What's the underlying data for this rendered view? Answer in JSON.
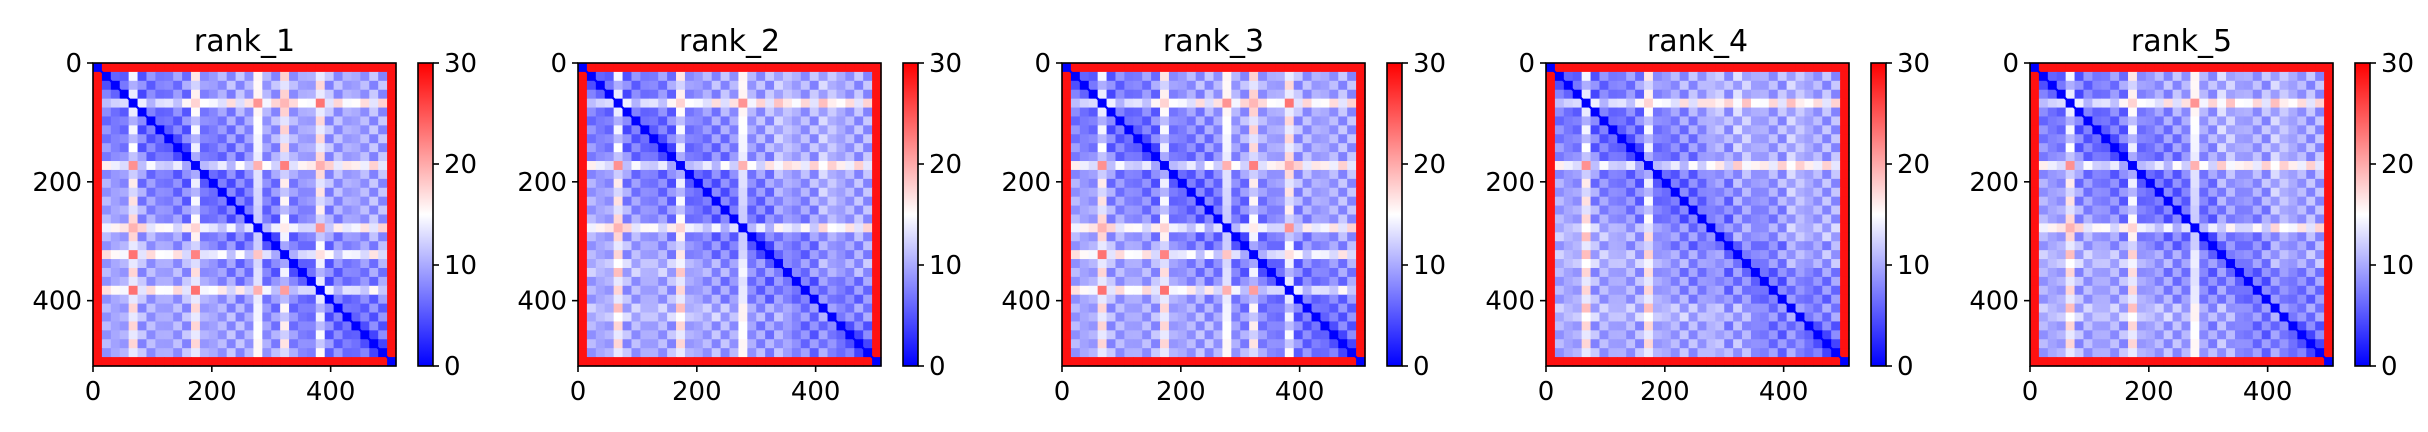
{
  "figure": {
    "type": "pae-heatmap-grid",
    "panel_count": 5
  },
  "chart_data": [
    {
      "type": "heatmap",
      "title": "rank_1",
      "n": 510,
      "xticks": [
        0,
        200,
        400
      ],
      "yticks": [
        0,
        200,
        400
      ],
      "xlim": [
        0,
        510
      ],
      "ylim": [
        510,
        0
      ],
      "colorbar": {
        "range": [
          0,
          30
        ],
        "ticks": [
          0,
          10,
          20,
          30
        ],
        "cmap": "bwr",
        "colors": [
          "#0000ff",
          "#ffffff",
          "#ff0000"
        ]
      },
      "bands": [
        65,
        175,
        275,
        320,
        380
      ],
      "edge_high": [
        0,
        10,
        500,
        510
      ]
    },
    {
      "type": "heatmap",
      "title": "rank_2",
      "n": 510,
      "xticks": [
        0,
        200,
        400
      ],
      "yticks": [
        0,
        200,
        400
      ],
      "xlim": [
        0,
        510
      ],
      "ylim": [
        510,
        0
      ],
      "colorbar": {
        "range": [
          0,
          30
        ],
        "ticks": [
          0,
          10,
          20,
          30
        ],
        "cmap": "bwr",
        "colors": [
          "#0000ff",
          "#ffffff",
          "#ff0000"
        ]
      },
      "bands": [
        65,
        175,
        275,
        345,
        420
      ],
      "edge_high": [
        0,
        10,
        500,
        510
      ]
    },
    {
      "type": "heatmap",
      "title": "rank_3",
      "n": 510,
      "xticks": [
        0,
        200,
        400
      ],
      "yticks": [
        0,
        200,
        400
      ],
      "xlim": [
        0,
        510
      ],
      "ylim": [
        510,
        0
      ],
      "colorbar": {
        "range": [
          0,
          30
        ],
        "ticks": [
          0,
          10,
          20,
          30
        ],
        "cmap": "bwr",
        "colors": [
          "#0000ff",
          "#ffffff",
          "#ff0000"
        ]
      },
      "bands": [
        65,
        175,
        280,
        320,
        380
      ],
      "edge_high": [
        0,
        10,
        500,
        510
      ]
    },
    {
      "type": "heatmap",
      "title": "rank_4",
      "n": 510,
      "xticks": [
        0,
        200,
        400
      ],
      "yticks": [
        0,
        200,
        400
      ],
      "xlim": [
        0,
        510
      ],
      "ylim": [
        510,
        0
      ],
      "colorbar": {
        "range": [
          0,
          30
        ],
        "ticks": [
          0,
          10,
          20,
          30
        ],
        "cmap": "bwr",
        "colors": [
          "#0000ff",
          "#ffffff",
          "#ff0000"
        ]
      },
      "bands": [
        65,
        175,
        285,
        330,
        420
      ],
      "edge_high": [
        0,
        10,
        500,
        510
      ]
    },
    {
      "type": "heatmap",
      "title": "rank_5",
      "n": 510,
      "xticks": [
        0,
        200,
        400
      ],
      "yticks": [
        0,
        200,
        400
      ],
      "xlim": [
        0,
        510
      ],
      "ylim": [
        510,
        0
      ],
      "colorbar": {
        "range": [
          0,
          30
        ],
        "ticks": [
          0,
          10,
          20,
          30
        ],
        "cmap": "bwr",
        "colors": [
          "#0000ff",
          "#ffffff",
          "#ff0000"
        ]
      },
      "bands": [
        65,
        175,
        280,
        330,
        420
      ],
      "edge_high": [
        0,
        10,
        500,
        510
      ]
    }
  ]
}
